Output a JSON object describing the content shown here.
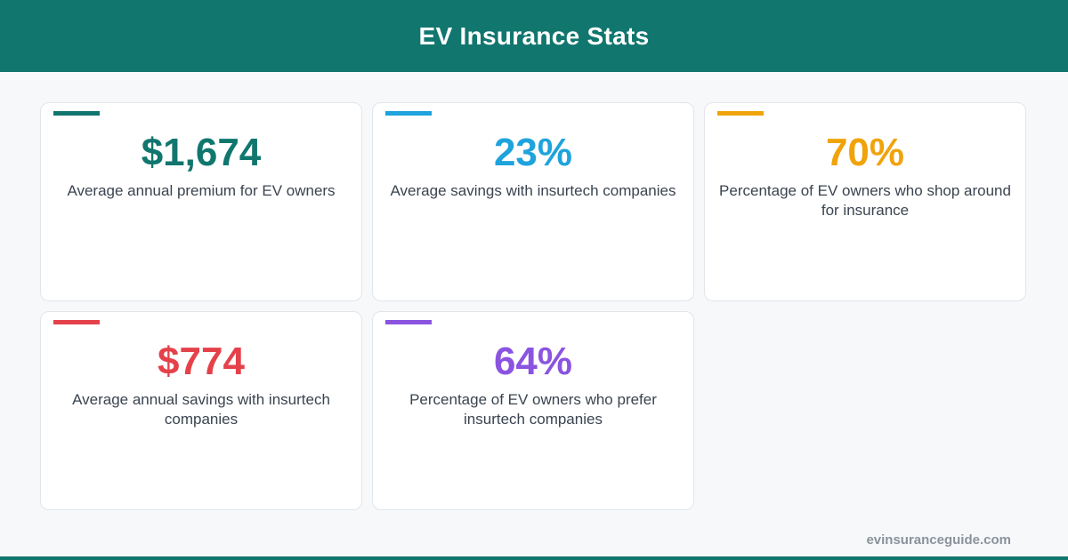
{
  "header": {
    "title": "EV Insurance Stats",
    "background_color": "#10766e"
  },
  "stats": [
    {
      "value": "$1,674",
      "description": "Average annual premium for EV owners",
      "color": "#10766e"
    },
    {
      "value": "23%",
      "description": "Average savings with insurtech companies",
      "color": "#1ea3dc"
    },
    {
      "value": "70%",
      "description": "Percentage of EV owners who shop around for insurance",
      "color": "#f0a30a"
    },
    {
      "value": "$774",
      "description": "Average annual savings with insurtech companies",
      "color": "#e5414a"
    },
    {
      "value": "64%",
      "description": "Percentage of EV owners who prefer insurtech companies",
      "color": "#8a54e0"
    }
  ],
  "footer": {
    "site": "evinsuranceguide.com",
    "bar_color": "#10766e"
  }
}
